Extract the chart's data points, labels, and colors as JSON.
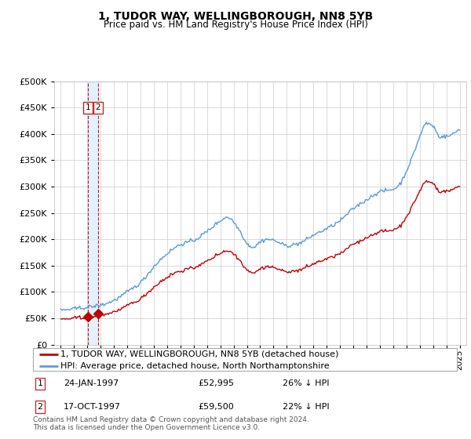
{
  "title": "1, TUDOR WAY, WELLINGBOROUGH, NN8 5YB",
  "subtitle": "Price paid vs. HM Land Registry's House Price Index (HPI)",
  "legend_line1": "1, TUDOR WAY, WELLINGBOROUGH, NN8 5YB (detached house)",
  "legend_line2": "HPI: Average price, detached house, North Northamptonshire",
  "footnote": "Contains HM Land Registry data © Crown copyright and database right 2024.\nThis data is licensed under the Open Government Licence v3.0.",
  "transactions": [
    {
      "num": 1,
      "date": "24-JAN-1997",
      "price": 52995,
      "year": 1997.06
    },
    {
      "num": 2,
      "date": "17-OCT-1997",
      "price": 59500,
      "year": 1997.79
    }
  ],
  "transaction_labels": [
    {
      "num": 1,
      "date": "24-JAN-1997",
      "price": "£52,995",
      "pct": "26% ↓ HPI"
    },
    {
      "num": 2,
      "date": "17-OCT-1997",
      "price": "£59,500",
      "pct": "22% ↓ HPI"
    }
  ],
  "hpi_color": "#5b9bd5",
  "price_color": "#c00000",
  "vline_color": "#c00000",
  "vband_color": "#ddeeff",
  "background_color": "#ffffff",
  "grid_color": "#cccccc",
  "ylim": [
    0,
    500000
  ],
  "yticks": [
    0,
    50000,
    100000,
    150000,
    200000,
    250000,
    300000,
    350000,
    400000,
    450000,
    500000
  ],
  "xlim_start": 1994.5,
  "xlim_end": 2025.5,
  "xticks": [
    1995,
    1996,
    1997,
    1998,
    1999,
    2000,
    2001,
    2002,
    2003,
    2004,
    2005,
    2006,
    2007,
    2008,
    2009,
    2010,
    2011,
    2012,
    2013,
    2014,
    2015,
    2016,
    2017,
    2018,
    2019,
    2020,
    2021,
    2022,
    2023,
    2024,
    2025
  ]
}
